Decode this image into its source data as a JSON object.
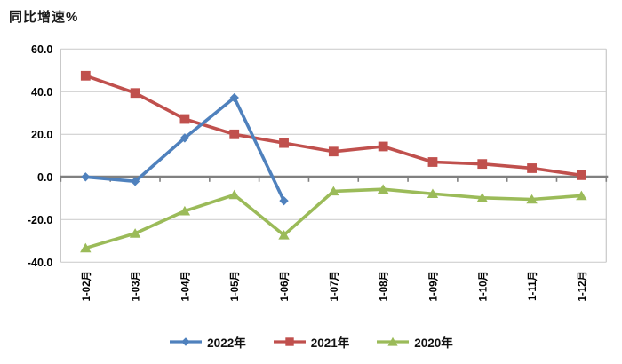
{
  "chart_data": {
    "type": "line",
    "title": "同比增速%",
    "categories": [
      "1-02月",
      "1-03月",
      "1-04月",
      "1-05月",
      "1-06月",
      "1-07月",
      "1-08月",
      "1-09月",
      "1-10月",
      "1-11月",
      "1-12月"
    ],
    "series": [
      {
        "name": "2020年",
        "color": "#9BBB59",
        "marker": "triangle",
        "values": [
          -33.4,
          -26.5,
          -16.0,
          -8.4,
          -27.3,
          -6.7,
          -5.8,
          -7.9,
          -9.8,
          -10.5,
          -8.8
        ]
      },
      {
        "name": "2021年",
        "color": "#C0504D",
        "marker": "square",
        "values": [
          47.5,
          39.4,
          27.2,
          20.0,
          15.9,
          11.9,
          14.3,
          7.0,
          6.1,
          4.1,
          0.8
        ]
      },
      {
        "name": "2022年",
        "color": "#4F81BD",
        "marker": "diamond",
        "values": [
          0.0,
          -2.1,
          18.3,
          37.2,
          -11.2,
          null,
          null,
          null,
          null,
          null,
          null
        ]
      }
    ],
    "legend_order": [
      "2022年",
      "2021年",
      "2020年"
    ],
    "ylim": [
      -40,
      60
    ],
    "y_ticks": [
      60,
      40,
      20,
      0,
      -20,
      -40
    ],
    "y_tick_labels": [
      "60.0",
      "40.0",
      "20.0",
      "0.0",
      "-20.0",
      "-40.0"
    ],
    "grid": true,
    "legend_position": "bottom",
    "grid_color": "#C9C9C9",
    "axis_color": "#808080",
    "text_color": "#000000"
  }
}
